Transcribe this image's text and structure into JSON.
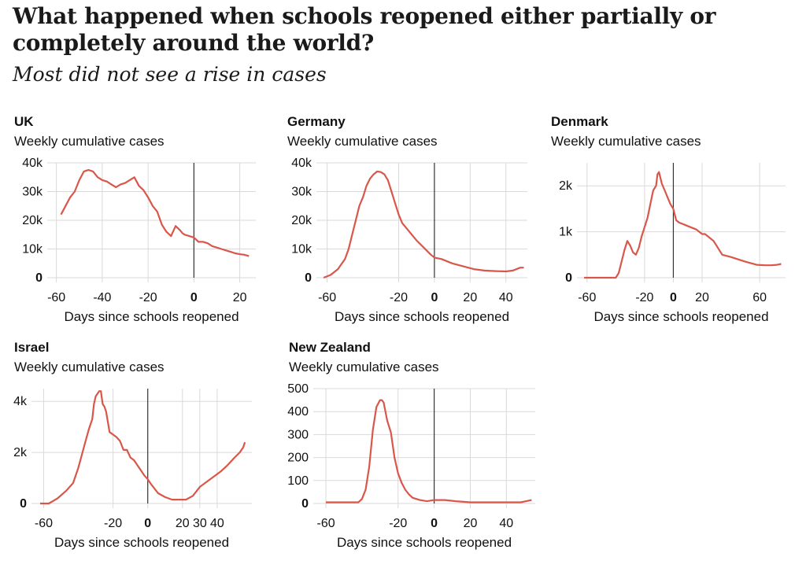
{
  "title": "What happened when schools reopened either partially or completely around the world?",
  "subtitle": "Most did not see a rise in cases",
  "colors": {
    "line": "#d9574a",
    "grid": "#d9d9d9",
    "zero_line": "#333333",
    "text": "#111111"
  },
  "chart_data": [
    {
      "type": "line",
      "title": "UK",
      "ylabel": "Weekly cumulative cases",
      "xlabel": "Days since schools reopened",
      "xlim": [
        -64,
        27
      ],
      "ylim": [
        0,
        40000
      ],
      "xticks": [
        -60,
        -40,
        -20,
        0,
        20
      ],
      "xtick_labels": [
        "-60",
        "-40",
        "-20",
        "0",
        "20"
      ],
      "yticks": [
        0,
        10000,
        20000,
        30000,
        40000
      ],
      "ytick_labels": [
        "0",
        "10k",
        "20k",
        "30k",
        "40k"
      ],
      "series": [
        {
          "x": [
            -58,
            -56,
            -54,
            -52,
            -50,
            -48,
            -46,
            -44,
            -42,
            -40,
            -38,
            -36,
            -34,
            -32,
            -30,
            -28,
            -26,
            -24,
            -22,
            -20,
            -18,
            -16,
            -14,
            -12,
            -10,
            -8,
            -6,
            -5,
            -4,
            -2,
            0,
            2,
            4,
            6,
            8,
            10,
            12,
            14,
            16,
            18,
            20,
            22,
            24
          ],
          "y": [
            22000,
            25000,
            28000,
            30000,
            34000,
            37000,
            37500,
            37000,
            35000,
            34000,
            33500,
            32500,
            31500,
            32500,
            33000,
            34000,
            35000,
            32000,
            30500,
            28000,
            25000,
            23000,
            18500,
            16000,
            14500,
            18000,
            16500,
            15500,
            15000,
            14500,
            14000,
            12500,
            12500,
            12000,
            11000,
            10500,
            10000,
            9500,
            9000,
            8500,
            8200,
            8000,
            7500
          ]
        }
      ]
    },
    {
      "type": "line",
      "title": "Germany",
      "ylabel": "Weekly cumulative cases",
      "xlabel": "Days since schools reopened",
      "xlim": [
        -66,
        52
      ],
      "ylim": [
        0,
        40000
      ],
      "xticks": [
        -60,
        -20,
        0,
        20,
        40
      ],
      "xtick_labels": [
        "-60",
        "-20",
        "0",
        "20",
        "40"
      ],
      "yticks": [
        0,
        10000,
        20000,
        30000,
        40000
      ],
      "ytick_labels": [
        "0",
        "10k",
        "20k",
        "30k",
        "40k"
      ],
      "series": [
        {
          "x": [
            -62,
            -58,
            -54,
            -50,
            -48,
            -46,
            -44,
            -42,
            -40,
            -38,
            -36,
            -34,
            -32,
            -30,
            -28,
            -26,
            -24,
            -22,
            -20,
            -18,
            -14,
            -10,
            -6,
            -2,
            0,
            4,
            10,
            16,
            22,
            28,
            34,
            40,
            44,
            48,
            50
          ],
          "y": [
            0,
            1000,
            3000,
            6500,
            10000,
            15000,
            20000,
            25000,
            28000,
            32000,
            34500,
            36000,
            37000,
            36800,
            36000,
            34000,
            30000,
            26000,
            22000,
            19000,
            16000,
            13000,
            10500,
            8000,
            7000,
            6500,
            5000,
            4000,
            3000,
            2500,
            2300,
            2200,
            2500,
            3500,
            3500
          ]
        }
      ]
    },
    {
      "type": "line",
      "title": "Denmark",
      "ylabel": "Weekly cumulative cases",
      "xlabel": "Days since schools reopened",
      "xlim": [
        -67,
        78
      ],
      "ylim": [
        0,
        2500
      ],
      "xticks": [
        -60,
        -20,
        0,
        20,
        60
      ],
      "xtick_labels": [
        "-60",
        "-20",
        "0",
        "20",
        "60"
      ],
      "yticks": [
        0,
        1000,
        2000
      ],
      "ytick_labels": [
        "0",
        "1k",
        "2k"
      ],
      "series": [
        {
          "x": [
            -62,
            -54,
            -46,
            -40,
            -38,
            -36,
            -34,
            -32,
            -30,
            -28,
            -26,
            -24,
            -22,
            -20,
            -18,
            -16,
            -14,
            -12,
            -11,
            -10,
            -8,
            -6,
            -4,
            -2,
            0,
            2,
            4,
            8,
            12,
            16,
            20,
            22,
            24,
            28,
            34,
            40,
            50,
            58,
            64,
            68,
            72,
            75
          ],
          "y": [
            0,
            0,
            0,
            0,
            100,
            350,
            600,
            800,
            700,
            550,
            500,
            650,
            900,
            1100,
            1300,
            1600,
            1900,
            2000,
            2250,
            2300,
            2050,
            1900,
            1750,
            1600,
            1500,
            1250,
            1200,
            1150,
            1100,
            1050,
            950,
            950,
            900,
            800,
            500,
            450,
            350,
            280,
            270,
            270,
            280,
            300
          ]
        }
      ]
    },
    {
      "type": "line",
      "title": "Israel",
      "ylabel": "Weekly cumulative cases",
      "xlabel": "Days since schools reopened",
      "xlim": [
        -67,
        60
      ],
      "ylim": [
        0,
        4500
      ],
      "xticks": [
        -60,
        -20,
        0,
        20,
        30,
        40
      ],
      "xtick_labels": [
        "-60",
        "-20",
        "0",
        "20",
        "30",
        "40"
      ],
      "yticks": [
        0,
        2000,
        4000
      ],
      "ytick_labels": [
        "0",
        "2k",
        "4k"
      ],
      "series": [
        {
          "x": [
            -62,
            -57,
            -52,
            -47,
            -43,
            -40,
            -38,
            -36,
            -34,
            -32,
            -31,
            -30,
            -28,
            -27,
            -26,
            -25,
            -24,
            -22,
            -21,
            -20,
            -18,
            -16,
            -14,
            -12,
            -10,
            -8,
            -6,
            -4,
            -2,
            0,
            2,
            6,
            10,
            14,
            18,
            22,
            26,
            30,
            34,
            38,
            42,
            46,
            50,
            53,
            55,
            56
          ],
          "y": [
            0,
            0,
            200,
            500,
            800,
            1400,
            1900,
            2400,
            2900,
            3300,
            3900,
            4200,
            4400,
            4400,
            3900,
            3800,
            3600,
            2800,
            2750,
            2700,
            2600,
            2450,
            2100,
            2100,
            1800,
            1700,
            1500,
            1300,
            1100,
            950,
            750,
            400,
            250,
            150,
            150,
            150,
            300,
            650,
            850,
            1050,
            1250,
            1500,
            1800,
            2000,
            2200,
            2400
          ]
        }
      ]
    },
    {
      "type": "line",
      "title": "New Zealand",
      "ylabel": "Weekly cumulative cases",
      "xlabel": "Days since schools reopened",
      "xlim": [
        -67,
        56
      ],
      "ylim": [
        0,
        500
      ],
      "xticks": [
        -60,
        -20,
        0,
        20,
        40
      ],
      "xtick_labels": [
        "-60",
        "-20",
        "0",
        "20",
        "40"
      ],
      "yticks": [
        0,
        100,
        200,
        300,
        400,
        500
      ],
      "ytick_labels": [
        "0",
        "100",
        "200",
        "300",
        "400",
        "500"
      ],
      "series": [
        {
          "x": [
            -60,
            -50,
            -42,
            -40,
            -38,
            -36,
            -34,
            -32,
            -30,
            -29,
            -28,
            -26,
            -24,
            -22,
            -20,
            -18,
            -16,
            -14,
            -12,
            -8,
            -4,
            0,
            6,
            12,
            20,
            28,
            36,
            42,
            48,
            54
          ],
          "y": [
            5,
            5,
            5,
            20,
            60,
            160,
            320,
            420,
            450,
            450,
            440,
            360,
            310,
            200,
            130,
            90,
            60,
            40,
            25,
            15,
            10,
            15,
            15,
            10,
            5,
            5,
            5,
            5,
            5,
            15
          ]
        }
      ]
    }
  ]
}
